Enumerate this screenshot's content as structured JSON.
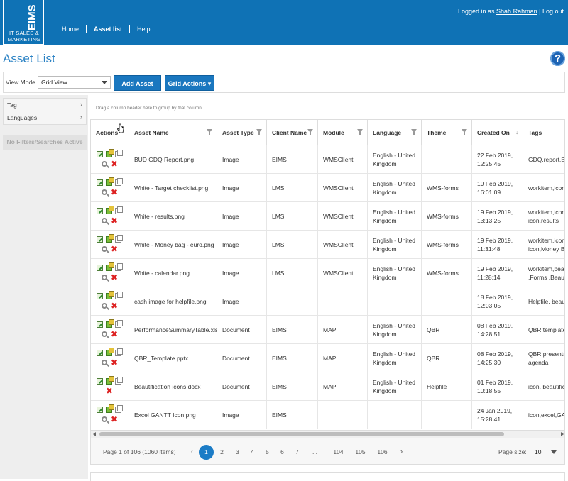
{
  "header": {
    "logo_text": "EIMS",
    "logo_sub": "IT SALES & MARKETING",
    "nav": [
      "Home",
      "Asset list",
      "Help"
    ],
    "login_prefix": "Logged in as",
    "login_user": "Shah Rahman",
    "login_sep": "|",
    "logout": "Log out"
  },
  "page": {
    "title": "Asset List",
    "help_label": "?"
  },
  "toolbar": {
    "view_mode_label": "View Mode",
    "view_mode_value": "Grid View",
    "add_asset_label": "Add Asset",
    "grid_actions_label": "Grid Actions ▾"
  },
  "filters": {
    "items": [
      "Tag",
      "Languages"
    ],
    "status": "No Filters/Searches Active"
  },
  "grid": {
    "group_hint": "Drag a column header here to group by that column",
    "columns": [
      "Actions",
      "Asset Name",
      "Asset Type",
      "Client Name",
      "Module",
      "Language",
      "Theme",
      "Created On",
      "Tags"
    ],
    "rows": [
      {
        "name": "BUD GDQ Report.png",
        "type": "Image",
        "client": "EIMS",
        "module": "WMSClient",
        "language": "English - United Kingdom",
        "theme": "",
        "created": "22 Feb 2019, 12:25:45",
        "tags": "GDQ,report,BU"
      },
      {
        "name": "White - Target checklist.png",
        "type": "Image",
        "client": "LMS",
        "module": "WMSClient",
        "language": "English - United Kingdom",
        "theme": "WMS-forms",
        "created": "19 Feb 2019, 16:01:09",
        "tags": "workitem,icon, icon"
      },
      {
        "name": "White - results.png",
        "type": "Image",
        "client": "LMS",
        "module": "WMSClient",
        "language": "English - United Kingdom",
        "theme": "WMS-forms",
        "created": "19 Feb 2019, 13:13:25",
        "tags": "workitem,icon, icon,results"
      },
      {
        "name": "White - Money bag - euro.png",
        "type": "Image",
        "client": "LMS",
        "module": "WMSClient",
        "language": "English - United Kingdom",
        "theme": "WMS-forms",
        "created": "19 Feb 2019, 11:31:48",
        "tags": "workitem,icon, icon,Money Ba"
      },
      {
        "name": "White - calendar.png",
        "type": "Image",
        "client": "LMS",
        "module": "WMSClient",
        "language": "English - United Kingdom",
        "theme": "WMS-forms",
        "created": "19 Feb 2019, 11:28:14",
        "tags": "workitem,beau ,Forms ,Beauti"
      },
      {
        "name": "cash image for helpfile.png",
        "type": "Image",
        "client": "",
        "module": "",
        "language": "",
        "theme": "",
        "created": "18 Feb 2019, 12:03:05",
        "tags": "Helpfile, beaut"
      },
      {
        "name": "PerformanceSummaryTable.xlsx",
        "type": "Document",
        "client": "EIMS",
        "module": "MAP",
        "language": "English - United Kingdom",
        "theme": "QBR",
        "created": "08 Feb 2019, 14:28:51",
        "tags": "QBR,template,"
      },
      {
        "name": "QBR_Template.pptx",
        "type": "Document",
        "client": "EIMS",
        "module": "MAP",
        "language": "English - United Kingdom",
        "theme": "QBR",
        "created": "08 Feb 2019, 14:25:30",
        "tags": "QBR,presentat agenda"
      },
      {
        "name": "Beautification icons.docx",
        "type": "Document",
        "client": "EIMS",
        "module": "MAP",
        "language": "English - United Kingdom",
        "theme": "Helpfile",
        "created": "01 Feb 2019, 10:18:55",
        "tags": "icon, beautifica"
      },
      {
        "name": "Excel GANTT Icon.png",
        "type": "Image",
        "client": "EIMS",
        "module": "",
        "language": "",
        "theme": "",
        "created": "24 Jan 2019, 15:28:41",
        "tags": "icon,excel,GAN"
      }
    ]
  },
  "pager": {
    "info": "Page 1 of 106 (1060 items)",
    "pages": [
      "1",
      "2",
      "3",
      "4",
      "5",
      "6",
      "7",
      "...",
      "104",
      "105",
      "106"
    ],
    "current": "1",
    "prev": "‹",
    "next": "›",
    "page_size_label": "Page size:",
    "page_size_value": "10"
  },
  "colors": {
    "header_bg": "#0f72b5",
    "accent": "#1a77bf",
    "title": "#2b82c4"
  }
}
